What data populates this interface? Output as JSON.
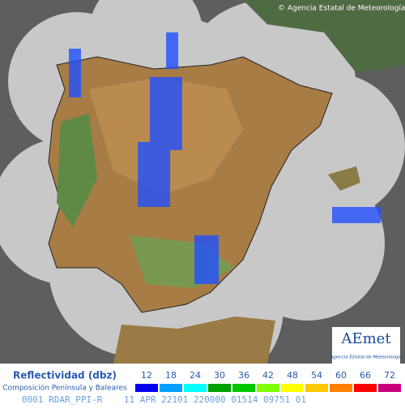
{
  "copyright": "© Agencia Estatal de Meteorología",
  "logo": {
    "name": "AEmet",
    "caption": "Agencia Estatal de Meteorología"
  },
  "legend": {
    "title": "Reflectividad (dbz)",
    "subtitle": "Composición Península y Baleares",
    "levels": [
      12,
      18,
      24,
      30,
      36,
      42,
      48,
      54,
      60,
      66,
      72
    ],
    "colors": [
      "#0000f0",
      "#00a0ff",
      "#00ffff",
      "#00a000",
      "#00c800",
      "#80ff00",
      "#ffff00",
      "#ffc800",
      "#ff8000",
      "#ff0000",
      "#c8007a"
    ]
  },
  "footer": "0001 RDAR_PPI-R    11 APR 22101 220000 01514 09751 01"
}
